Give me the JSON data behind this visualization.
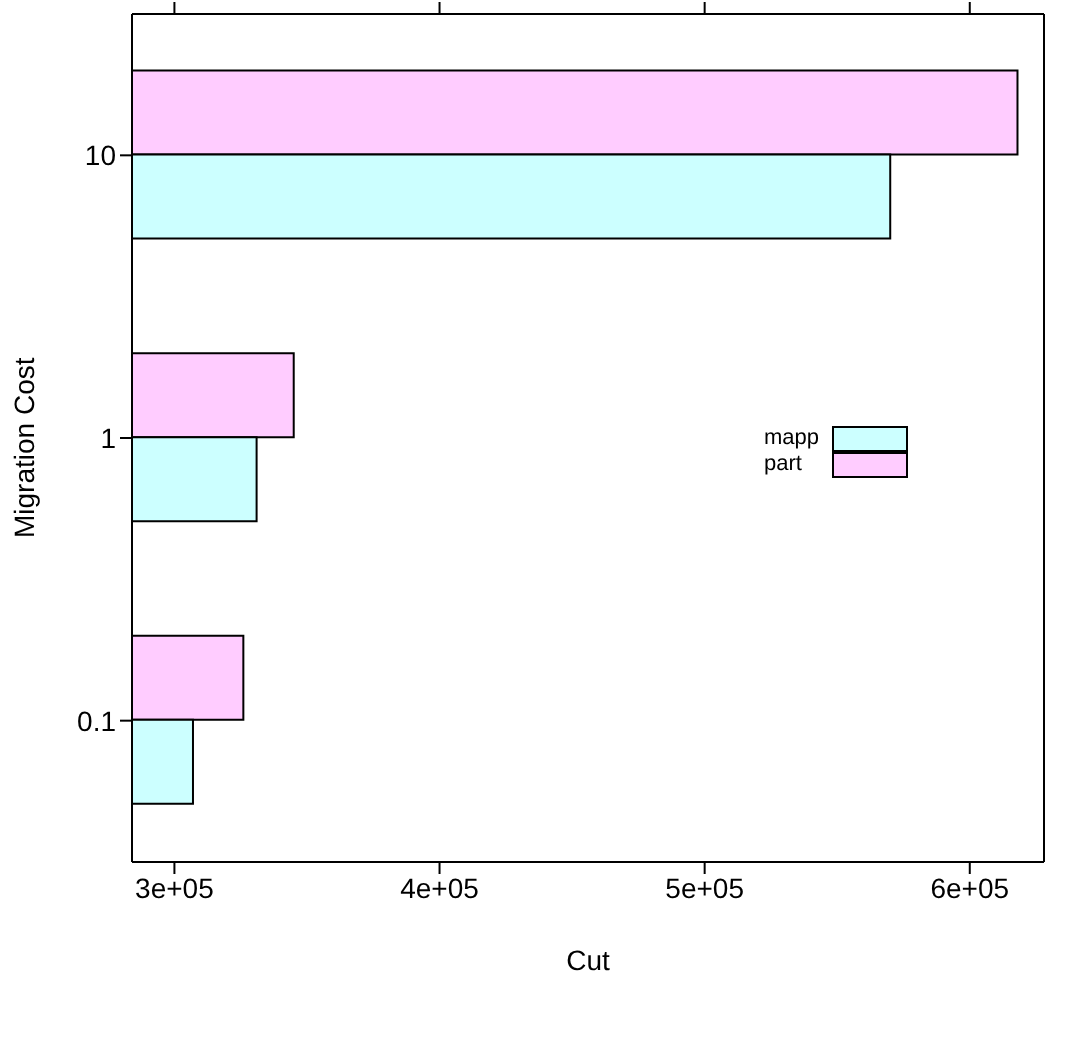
{
  "chart_data": {
    "type": "bar",
    "orientation": "horizontal",
    "xlabel": "Cut",
    "ylabel": "Migration Cost",
    "categories": [
      "10",
      "1",
      "0.1"
    ],
    "series": [
      {
        "name": "mapp",
        "color": "#ccffff",
        "values": [
          570000,
          331000,
          307000
        ]
      },
      {
        "name": "part",
        "color": "#ffccff",
        "values": [
          618000,
          345000,
          326000
        ]
      }
    ],
    "xlim": [
      284000,
      628000
    ],
    "xticks": [
      {
        "value": 300000,
        "label": "3e+05"
      },
      {
        "value": 400000,
        "label": "4e+05"
      },
      {
        "value": 500000,
        "label": "5e+05"
      },
      {
        "value": 600000,
        "label": "6e+05"
      }
    ],
    "grid": false,
    "legend": "right"
  }
}
